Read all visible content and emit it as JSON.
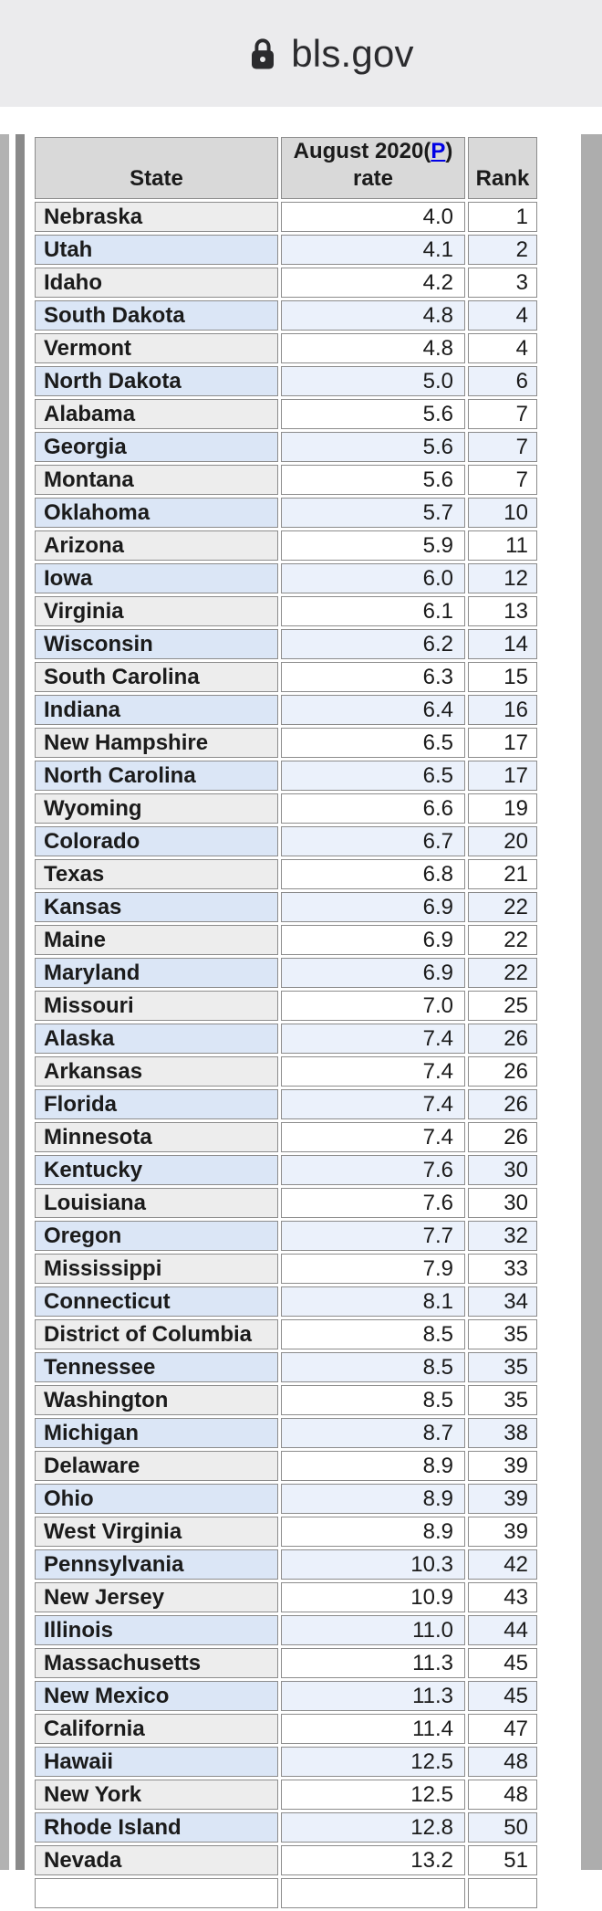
{
  "browser": {
    "url": "bls.gov",
    "lock_icon": "lock-icon"
  },
  "colors": {
    "chrome_bg": "#ebebed",
    "header_cell_bg": "#d9d9d9",
    "row_gray_state_bg": "#ededed",
    "row_blue_state_bg": "#dbe6f6",
    "row_blue_data_bg": "#ebf1fb",
    "link_blue": "#0000e6"
  },
  "table": {
    "headers": {
      "state": "State",
      "rate_line1_prefix": "August 2020(",
      "rate_footnote": "P",
      "rate_line1_suffix": ")",
      "rate_line2": "rate",
      "rank": "Rank"
    },
    "rows": [
      {
        "state": "Nebraska",
        "rate": "4.0",
        "rank": "1"
      },
      {
        "state": "Utah",
        "rate": "4.1",
        "rank": "2"
      },
      {
        "state": "Idaho",
        "rate": "4.2",
        "rank": "3"
      },
      {
        "state": "South Dakota",
        "rate": "4.8",
        "rank": "4"
      },
      {
        "state": "Vermont",
        "rate": "4.8",
        "rank": "4"
      },
      {
        "state": "North Dakota",
        "rate": "5.0",
        "rank": "6"
      },
      {
        "state": "Alabama",
        "rate": "5.6",
        "rank": "7"
      },
      {
        "state": "Georgia",
        "rate": "5.6",
        "rank": "7"
      },
      {
        "state": "Montana",
        "rate": "5.6",
        "rank": "7"
      },
      {
        "state": "Oklahoma",
        "rate": "5.7",
        "rank": "10"
      },
      {
        "state": "Arizona",
        "rate": "5.9",
        "rank": "11"
      },
      {
        "state": "Iowa",
        "rate": "6.0",
        "rank": "12"
      },
      {
        "state": "Virginia",
        "rate": "6.1",
        "rank": "13"
      },
      {
        "state": "Wisconsin",
        "rate": "6.2",
        "rank": "14"
      },
      {
        "state": "South Carolina",
        "rate": "6.3",
        "rank": "15"
      },
      {
        "state": "Indiana",
        "rate": "6.4",
        "rank": "16"
      },
      {
        "state": "New Hampshire",
        "rate": "6.5",
        "rank": "17"
      },
      {
        "state": "North Carolina",
        "rate": "6.5",
        "rank": "17"
      },
      {
        "state": "Wyoming",
        "rate": "6.6",
        "rank": "19"
      },
      {
        "state": "Colorado",
        "rate": "6.7",
        "rank": "20"
      },
      {
        "state": "Texas",
        "rate": "6.8",
        "rank": "21"
      },
      {
        "state": "Kansas",
        "rate": "6.9",
        "rank": "22"
      },
      {
        "state": "Maine",
        "rate": "6.9",
        "rank": "22"
      },
      {
        "state": "Maryland",
        "rate": "6.9",
        "rank": "22"
      },
      {
        "state": "Missouri",
        "rate": "7.0",
        "rank": "25"
      },
      {
        "state": "Alaska",
        "rate": "7.4",
        "rank": "26"
      },
      {
        "state": "Arkansas",
        "rate": "7.4",
        "rank": "26"
      },
      {
        "state": "Florida",
        "rate": "7.4",
        "rank": "26"
      },
      {
        "state": "Minnesota",
        "rate": "7.4",
        "rank": "26"
      },
      {
        "state": "Kentucky",
        "rate": "7.6",
        "rank": "30"
      },
      {
        "state": "Louisiana",
        "rate": "7.6",
        "rank": "30"
      },
      {
        "state": "Oregon",
        "rate": "7.7",
        "rank": "32"
      },
      {
        "state": "Mississippi",
        "rate": "7.9",
        "rank": "33"
      },
      {
        "state": "Connecticut",
        "rate": "8.1",
        "rank": "34"
      },
      {
        "state": "District of Columbia",
        "rate": "8.5",
        "rank": "35"
      },
      {
        "state": "Tennessee",
        "rate": "8.5",
        "rank": "35"
      },
      {
        "state": "Washington",
        "rate": "8.5",
        "rank": "35"
      },
      {
        "state": "Michigan",
        "rate": "8.7",
        "rank": "38"
      },
      {
        "state": "Delaware",
        "rate": "8.9",
        "rank": "39"
      },
      {
        "state": "Ohio",
        "rate": "8.9",
        "rank": "39"
      },
      {
        "state": "West Virginia",
        "rate": "8.9",
        "rank": "39"
      },
      {
        "state": "Pennsylvania",
        "rate": "10.3",
        "rank": "42"
      },
      {
        "state": "New Jersey",
        "rate": "10.9",
        "rank": "43"
      },
      {
        "state": "Illinois",
        "rate": "11.0",
        "rank": "44"
      },
      {
        "state": "Massachusetts",
        "rate": "11.3",
        "rank": "45"
      },
      {
        "state": "New Mexico",
        "rate": "11.3",
        "rank": "45"
      },
      {
        "state": "California",
        "rate": "11.4",
        "rank": "47"
      },
      {
        "state": "Hawaii",
        "rate": "12.5",
        "rank": "48"
      },
      {
        "state": "New York",
        "rate": "12.5",
        "rank": "48"
      },
      {
        "state": "Rhode Island",
        "rate": "12.8",
        "rank": "50"
      },
      {
        "state": "Nevada",
        "rate": "13.2",
        "rank": "51"
      }
    ]
  }
}
